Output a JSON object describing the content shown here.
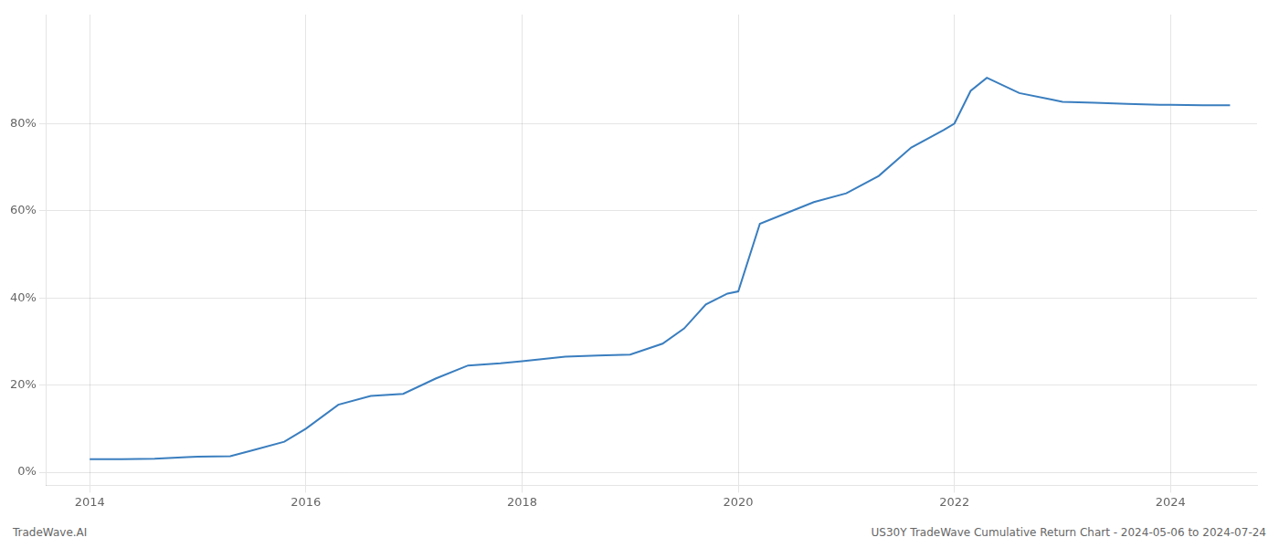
{
  "chart_data": {
    "type": "line",
    "x": [
      2014.0,
      2014.3,
      2014.6,
      2014.9,
      2015.0,
      2015.3,
      2015.5,
      2015.8,
      2016.0,
      2016.3,
      2016.6,
      2016.9,
      2017.2,
      2017.5,
      2017.8,
      2018.0,
      2018.2,
      2018.4,
      2018.7,
      2019.0,
      2019.3,
      2019.5,
      2019.7,
      2019.9,
      2020.0,
      2020.2,
      2020.5,
      2020.7,
      2021.0,
      2021.3,
      2021.6,
      2021.9,
      2022.0,
      2022.15,
      2022.3,
      2022.6,
      2022.9,
      2023.0,
      2023.3,
      2023.6,
      2023.9,
      2024.0,
      2024.3,
      2024.55
    ],
    "values": [
      0.03,
      0.03,
      0.031,
      0.035,
      0.036,
      0.037,
      0.05,
      0.07,
      0.1,
      0.155,
      0.175,
      0.18,
      0.215,
      0.245,
      0.25,
      0.255,
      0.26,
      0.265,
      0.268,
      0.27,
      0.295,
      0.33,
      0.385,
      0.41,
      0.415,
      0.57,
      0.6,
      0.62,
      0.64,
      0.68,
      0.745,
      0.785,
      0.8,
      0.875,
      0.905,
      0.87,
      0.855,
      0.85,
      0.848,
      0.845,
      0.843,
      0.843,
      0.842,
      0.842
    ],
    "color": "#3a7ebf",
    "xlim": [
      2013.6,
      2024.8
    ],
    "xticks": [
      2014,
      2016,
      2018,
      2020,
      2022,
      2024
    ],
    "ylim": [
      -0.03,
      1.05
    ],
    "yticks": [
      {
        "value": 0.0,
        "label": "0%"
      },
      {
        "value": 0.2,
        "label": "20%"
      },
      {
        "value": 0.4,
        "label": "40%"
      },
      {
        "value": 0.6,
        "label": "60%"
      },
      {
        "value": 0.8,
        "label": "80%"
      }
    ],
    "grid": true,
    "annotations": [
      "TradeWave.AI",
      "US30Y TradeWave Cumulative Return Chart - 2024-05-06 to 2024-07-24"
    ]
  }
}
